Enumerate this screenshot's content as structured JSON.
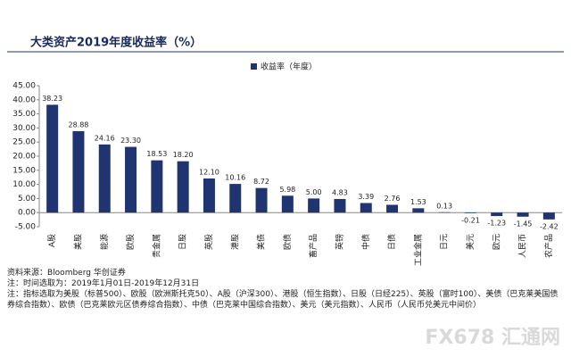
{
  "chart_data": {
    "type": "bar",
    "title": "大类资产2019年度收益率（%）",
    "legend_label": "收益率（年度）",
    "color": "#1f3470",
    "categories": [
      "A股",
      "美股",
      "能源",
      "欧股",
      "贵金属",
      "日股",
      "英股",
      "港股",
      "美债",
      "欧债",
      "畜产品",
      "英镑",
      "中债",
      "日债",
      "工业金属",
      "日元",
      "美元",
      "欧元",
      "人民币",
      "农产品"
    ],
    "values": [
      38.23,
      28.88,
      24.16,
      23.3,
      18.53,
      18.2,
      12.1,
      10.16,
      8.72,
      5.98,
      5.0,
      4.83,
      3.39,
      2.76,
      1.53,
      0.13,
      -0.21,
      -1.23,
      -1.45,
      -2.42
    ],
    "value_labels": [
      "38.23",
      "28.88",
      "24.16",
      "23.30",
      "18.53",
      "18.20",
      "12.10",
      "10.16",
      "8.72",
      "5.98",
      "5.00",
      "4.83",
      "3.39",
      "2.76",
      "1.53",
      "0.13",
      "-0.21",
      "-1.23",
      "-1.45",
      "-2.42"
    ],
    "ylim": [
      -5,
      45
    ],
    "yticks": [
      {
        "value": -5,
        "label": "-5.00"
      },
      {
        "value": 0,
        "label": "0.00"
      },
      {
        "value": 5,
        "label": "5.00"
      },
      {
        "value": 10,
        "label": "10.00"
      },
      {
        "value": 15,
        "label": "15.00"
      },
      {
        "value": 20,
        "label": "20.00"
      },
      {
        "value": 25,
        "label": "25.00"
      },
      {
        "value": 30,
        "label": "30.00"
      },
      {
        "value": 35,
        "label": "35.00"
      },
      {
        "value": 40,
        "label": "40.00"
      },
      {
        "value": 45,
        "label": "45.00"
      }
    ]
  },
  "notes": {
    "source": "资料来源：Bloomberg 华创证券",
    "period": "注：时间选取为：2019年1月01日-2019年12月31日",
    "indices": "注：指标选取为美股（标普500）、欧股（欧洲斯托克50）、A股（沪深300）、港股（恒生指数）、日股（日经225）、英股（富时100）、美债（巴克莱美国债券综合指数）、欧债（巴克莱欧元区债券综合指数）、中债（巴克莱中国综合指数）、美元（美元指数）、人民币（人民币兑美元中间价）"
  },
  "watermark": "FX678 汇通网"
}
